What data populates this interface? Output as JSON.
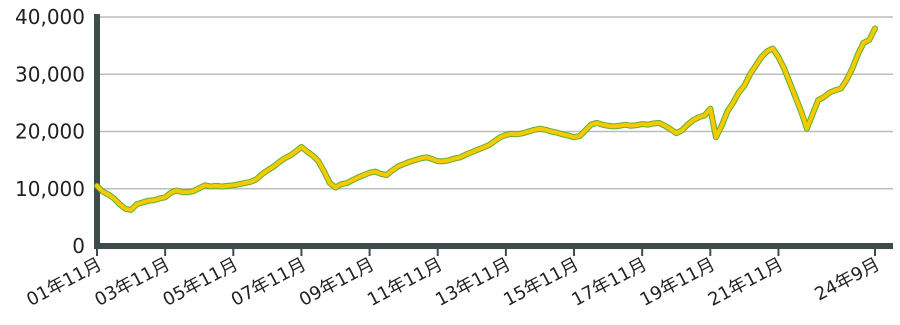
{
  "chart_data": {
    "type": "line",
    "categories": [
      "01年11月",
      null,
      null,
      null,
      null,
      null,
      null,
      null,
      null,
      null,
      null,
      null,
      "03年11月",
      null,
      null,
      null,
      null,
      null,
      null,
      null,
      null,
      null,
      null,
      null,
      "05年11月",
      null,
      null,
      null,
      null,
      null,
      null,
      null,
      null,
      null,
      null,
      null,
      "07年11月",
      null,
      null,
      null,
      null,
      null,
      null,
      null,
      null,
      null,
      null,
      null,
      "09年11月",
      null,
      null,
      null,
      null,
      null,
      null,
      null,
      null,
      null,
      null,
      null,
      "11年11月",
      null,
      null,
      null,
      null,
      null,
      null,
      null,
      null,
      null,
      null,
      null,
      "13年11月",
      null,
      null,
      null,
      null,
      null,
      null,
      null,
      null,
      null,
      null,
      null,
      "15年11月",
      null,
      null,
      null,
      null,
      null,
      null,
      null,
      null,
      null,
      null,
      null,
      "17年11月",
      null,
      null,
      null,
      null,
      null,
      null,
      null,
      null,
      null,
      null,
      null,
      "19年11月",
      null,
      null,
      null,
      null,
      null,
      null,
      null,
      null,
      null,
      null,
      null,
      "21年11月",
      null,
      null,
      null,
      null,
      null,
      null,
      null,
      null,
      null,
      null,
      null,
      null,
      null,
      null,
      null,
      null,
      "24年9月"
    ],
    "values": [
      10500,
      9500,
      9000,
      8300,
      7300,
      6500,
      6300,
      7300,
      7600,
      7900,
      8000,
      8300,
      8500,
      9300,
      9700,
      9400,
      9400,
      9600,
      10100,
      10600,
      10400,
      10500,
      10400,
      10500,
      10600,
      10800,
      11000,
      11200,
      11600,
      12500,
      13200,
      13800,
      14600,
      15300,
      15800,
      16500,
      17300,
      16500,
      15800,
      14800,
      13000,
      11000,
      10200,
      10800,
      11000,
      11500,
      12000,
      12400,
      12800,
      13000,
      12600,
      12400,
      13200,
      13900,
      14300,
      14700,
      15000,
      15300,
      15500,
      15200,
      14800,
      14800,
      15000,
      15300,
      15500,
      16000,
      16400,
      16800,
      17200,
      17600,
      18300,
      19000,
      19400,
      19600,
      19500,
      19700,
      20000,
      20300,
      20500,
      20300,
      20000,
      19800,
      19500,
      19300,
      19000,
      19200,
      20200,
      21200,
      21500,
      21200,
      21000,
      20900,
      21000,
      21200,
      21000,
      21100,
      21300,
      21200,
      21400,
      21500,
      21000,
      20400,
      19700,
      20200,
      21200,
      22000,
      22500,
      22800,
      24000,
      19000,
      21000,
      23500,
      25000,
      26800,
      28000,
      30000,
      31500,
      33000,
      34000,
      34500,
      33000,
      31000,
      28500,
      26000,
      23500,
      20500,
      23000,
      25500,
      26000,
      26800,
      27200,
      27500,
      29000,
      31000,
      33500,
      35500,
      36000,
      38000
    ],
    "color": "#f7c900",
    "edge_color": "#5fb030",
    "ylim": [
      0,
      40000
    ],
    "yticks": [
      0,
      {
        "value": 10000,
        "label": "10,000"
      },
      {
        "value": 20000,
        "label": "20,000"
      },
      {
        "value": 30000,
        "label": "30,000"
      },
      {
        "value": 40000,
        "label": "40,000"
      }
    ],
    "grid": true
  }
}
